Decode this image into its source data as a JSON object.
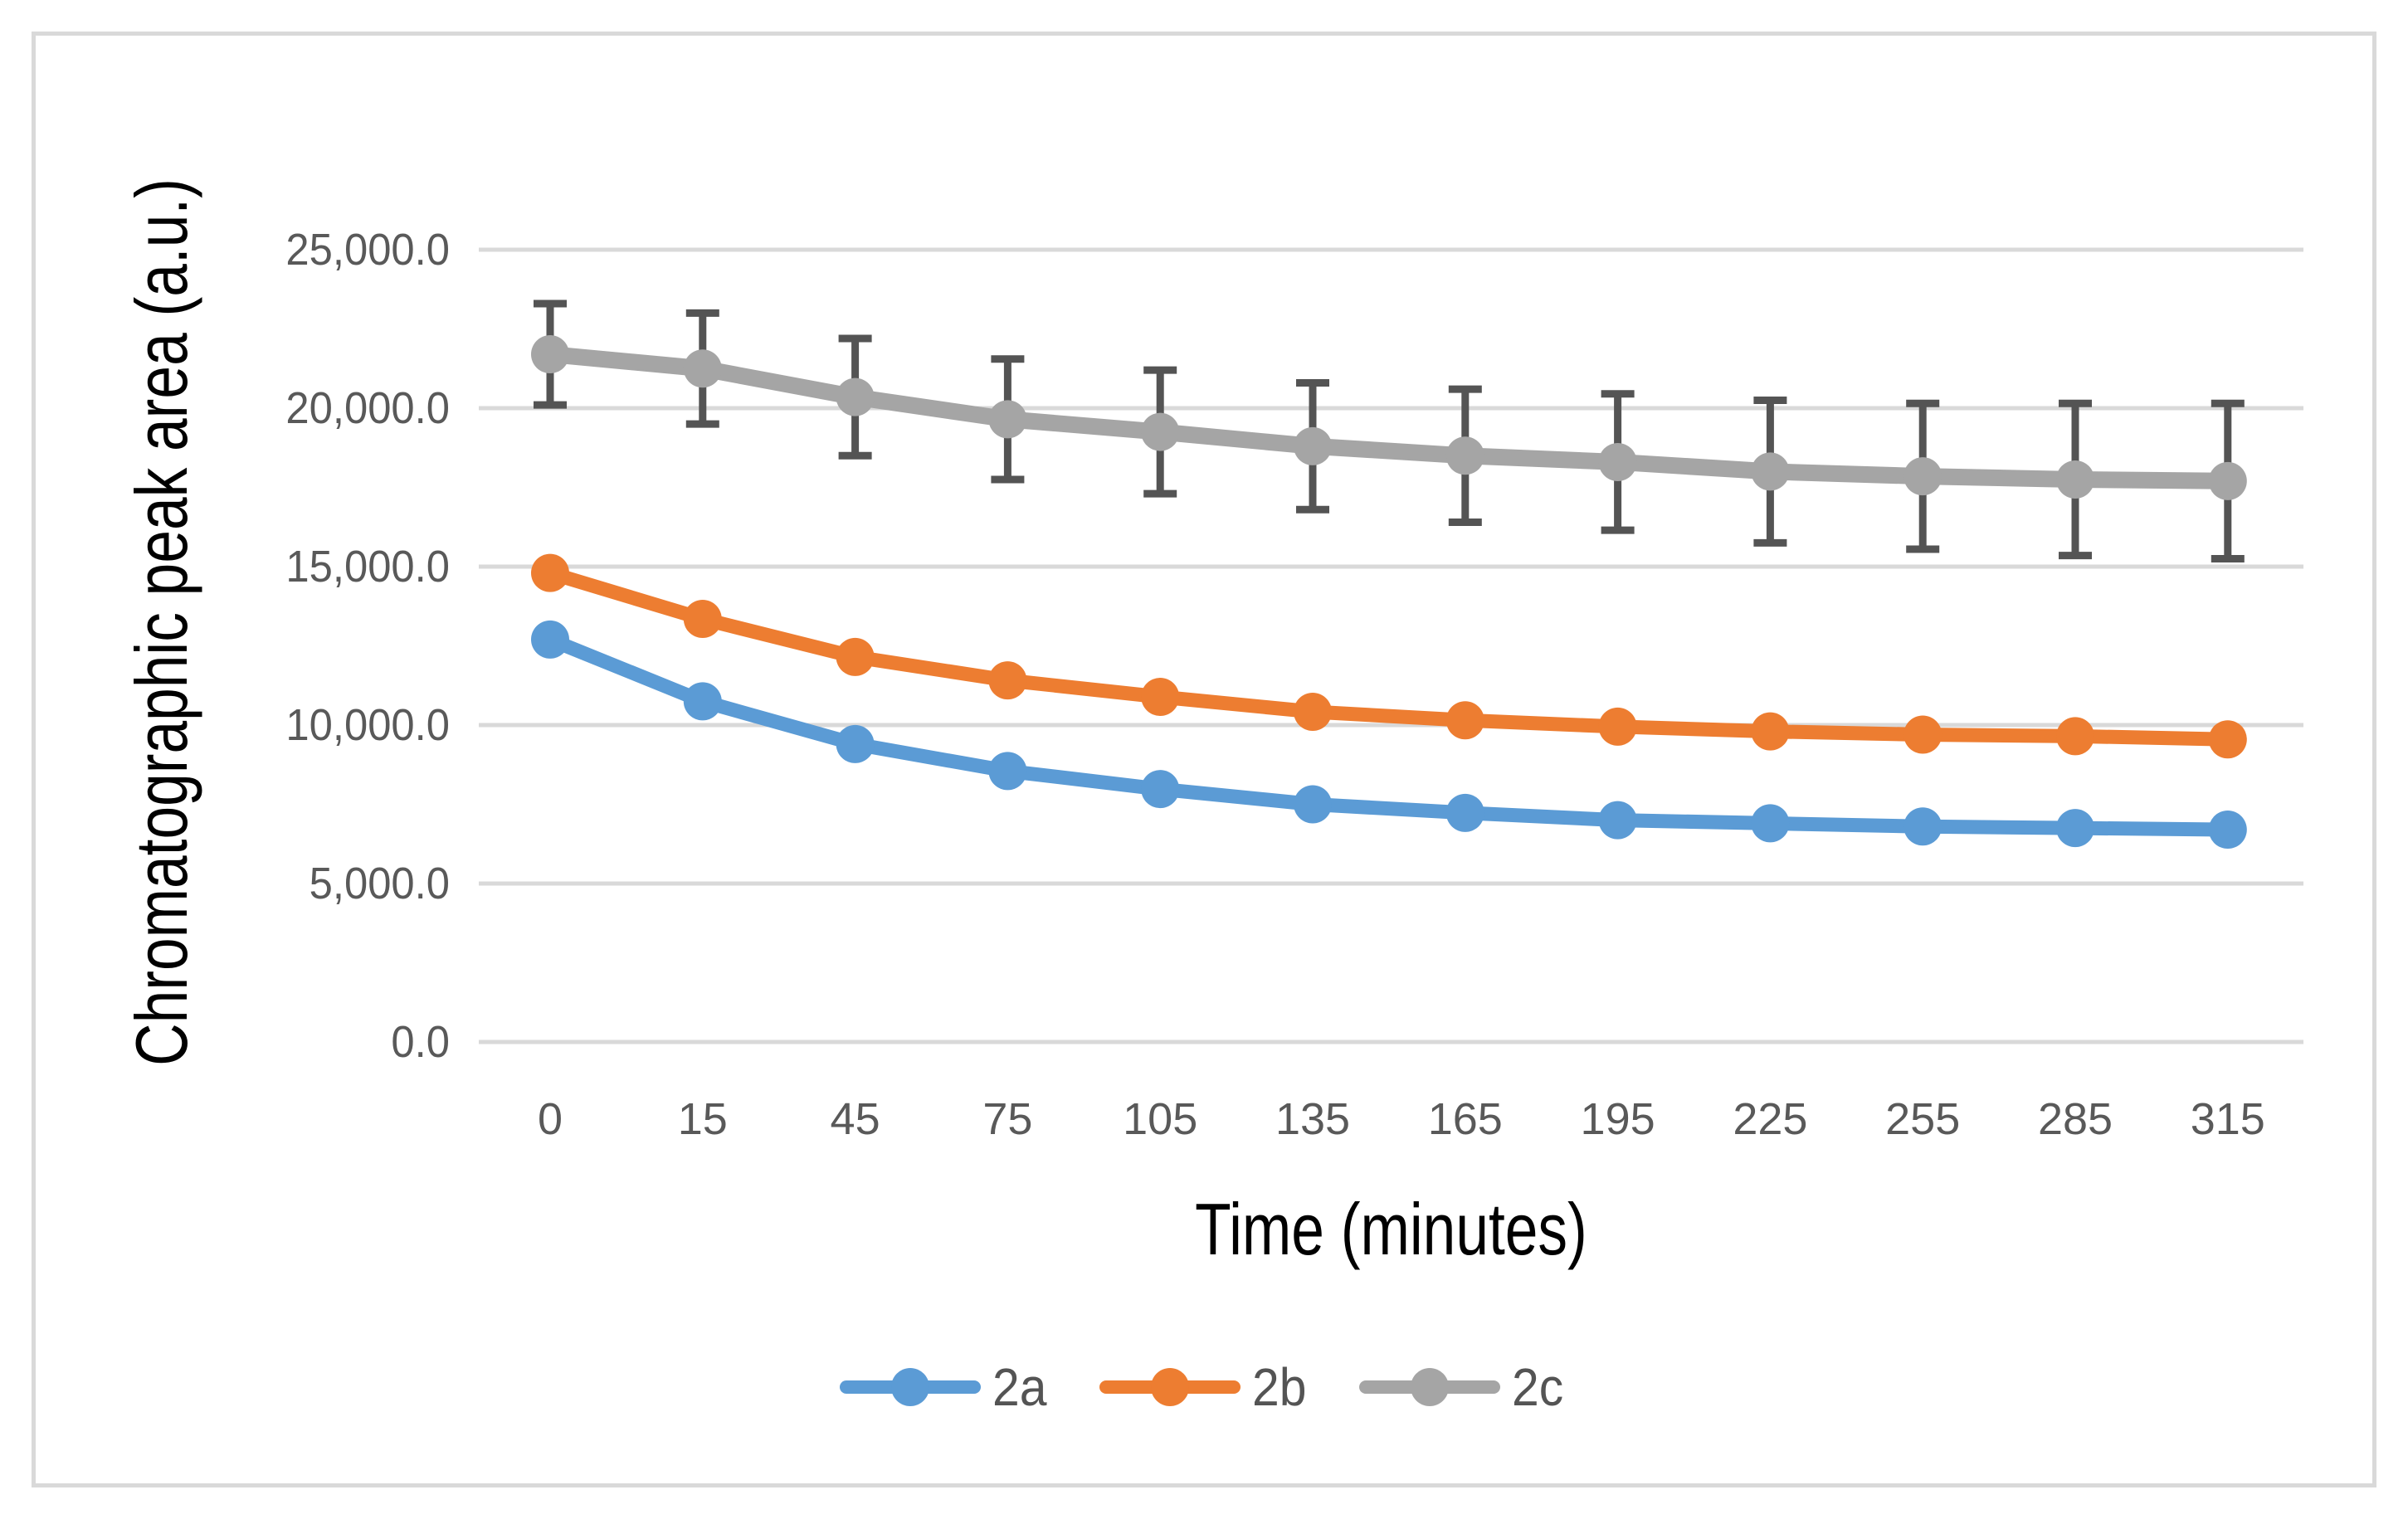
{
  "figure": {
    "background_color": "#FFFFFF",
    "border_color": "#D9D9D9"
  },
  "chart_data": {
    "type": "line",
    "title": "",
    "xlabel": "Time (minutes)",
    "ylabel": "Chromatographic peak area (a.u.)",
    "categories": [
      "0",
      "15",
      "45",
      "75",
      "105",
      "135",
      "165",
      "195",
      "225",
      "255",
      "285",
      "315"
    ],
    "y_ticks": [
      {
        "value": 25000,
        "label": "25,000.0"
      },
      {
        "value": 20000,
        "label": "20,000.0"
      },
      {
        "value": 15000,
        "label": "15,000.0"
      },
      {
        "value": 10000,
        "label": "10,000.0"
      },
      {
        "value": 5000,
        "label": "5,000.0"
      },
      {
        "value": 0,
        "label": "0.0"
      }
    ],
    "ylim": [
      0,
      25000
    ],
    "grid": "horizontal",
    "gridline_color": "#D9D9D9",
    "tick_label_color": "#595959",
    "axis_title_color": "#000000",
    "error_bar_color": "#545454",
    "legend_position": "bottom",
    "series": [
      {
        "name": "2a",
        "color": "#5B9BD5",
        "marker": "circle",
        "values": [
          12700,
          10750,
          9400,
          8550,
          7980,
          7500,
          7230,
          7000,
          6900,
          6800,
          6750,
          6700
        ]
      },
      {
        "name": "2b",
        "color": "#ED7D31",
        "marker": "circle",
        "values": [
          14800,
          13350,
          12150,
          11410,
          10890,
          10420,
          10150,
          9950,
          9800,
          9700,
          9650,
          9550
        ]
      },
      {
        "name": "2c",
        "color": "#A5A5A5",
        "marker": "circle",
        "values": [
          21700,
          21250,
          20350,
          19650,
          19250,
          18800,
          18500,
          18300,
          18000,
          17850,
          17750,
          17700
        ],
        "error_bars": [
          1600,
          1750,
          1850,
          1900,
          1950,
          2000,
          2100,
          2150,
          2250,
          2300,
          2400,
          2450
        ]
      }
    ]
  }
}
